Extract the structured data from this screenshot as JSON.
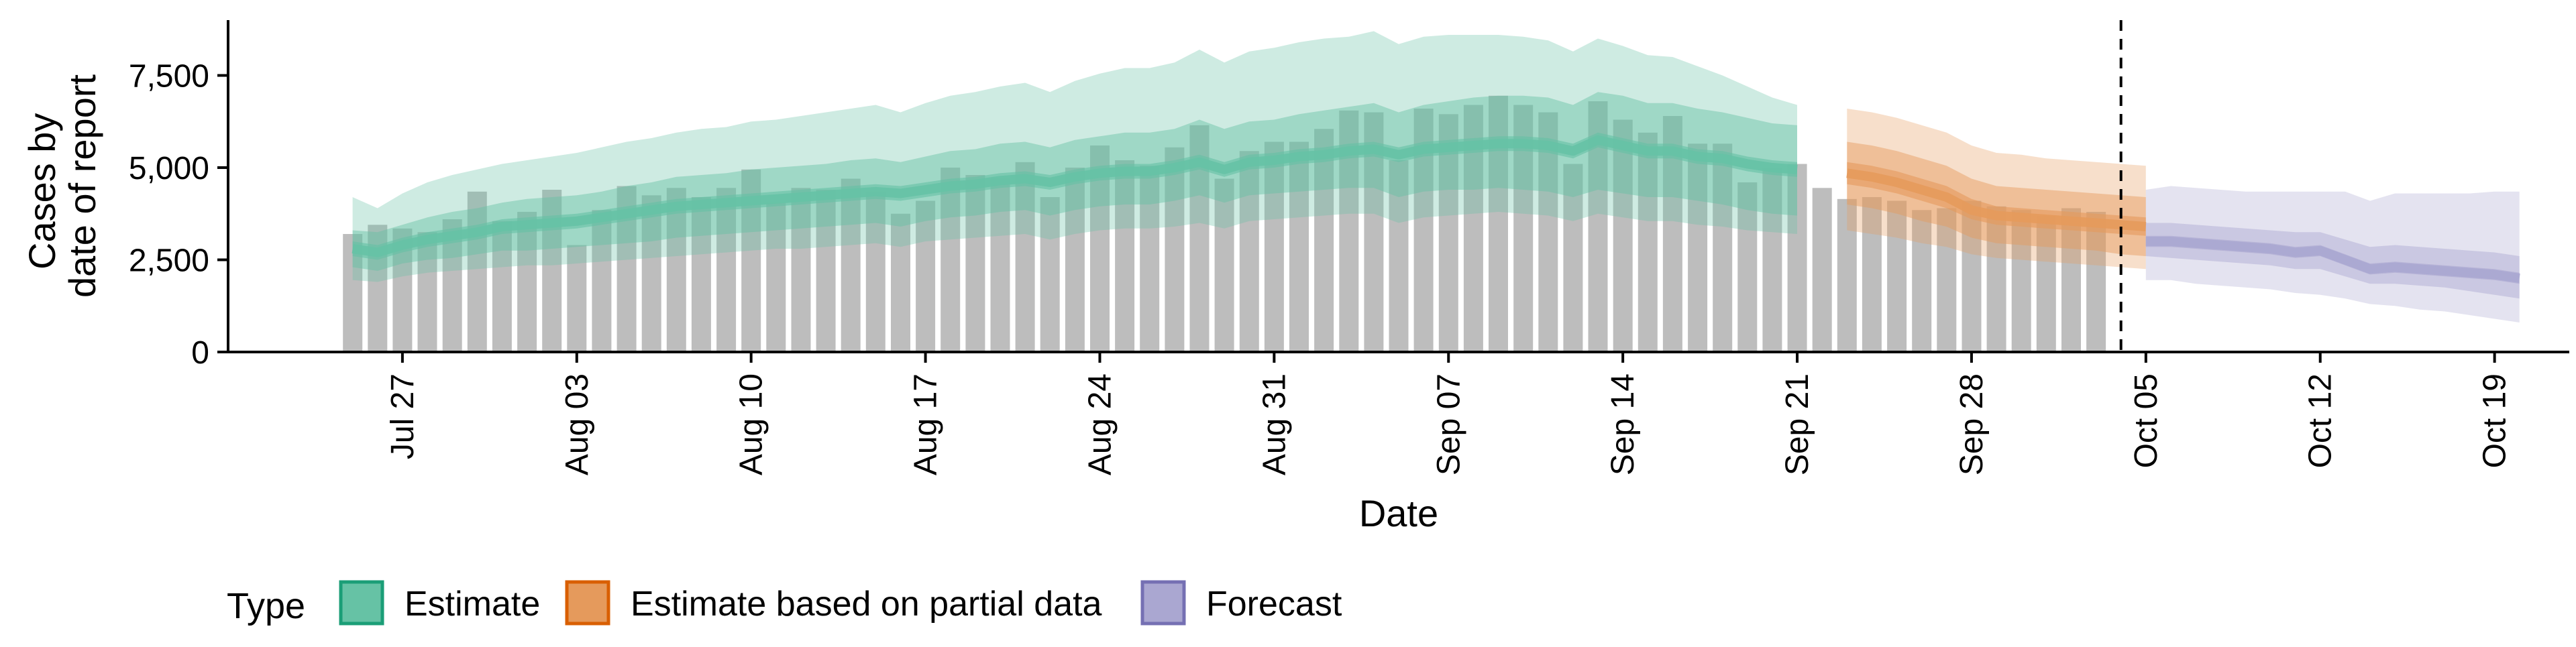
{
  "colors": {
    "Estimate": "#1b9e77",
    "Estimate based on partial data": "#d95f02",
    "Forecast": "#7570b3",
    "bars": "#bdbdbd",
    "Estimate_fill": "#66c2a5",
    "partial_fill": "#e59a5c",
    "Forecast_fill": "#aaa7d1"
  },
  "chart_data": {
    "type": "area",
    "xlabel": "Date",
    "ylabel_lines": [
      "Cases by",
      "date of report"
    ],
    "ylim": [
      0,
      9000
    ],
    "y_ticks": [
      0,
      2500,
      5000,
      7500
    ],
    "y_tick_labels": [
      "0",
      "2,500",
      "5,000",
      "7,500"
    ],
    "x_tick_dates": [
      "2020-07-27",
      "2020-08-03",
      "2020-08-10",
      "2020-08-17",
      "2020-08-24",
      "2020-08-31",
      "2020-09-07",
      "2020-09-14",
      "2020-09-21",
      "2020-09-28",
      "2020-10-05",
      "2020-10-12",
      "2020-10-19"
    ],
    "x_tick_labels": [
      "Jul 27",
      "Aug 03",
      "Aug 10",
      "Aug 17",
      "Aug 24",
      "Aug 31",
      "Sep 07",
      "Sep 14",
      "Sep 21",
      "Sep 28",
      "Oct 05",
      "Oct 12",
      "Oct 19"
    ],
    "xlim": [
      "2020-07-20",
      "2020-10-22"
    ],
    "reference_line_date": "2020-10-04",
    "bars": {
      "name": "Reported cases",
      "start_date": "2020-07-25",
      "values": [
        3200,
        3450,
        3350,
        3250,
        3600,
        4350,
        3550,
        3800,
        4400,
        2900,
        3850,
        4500,
        4250,
        4450,
        4200,
        4450,
        4950,
        4050,
        4450,
        4400,
        4700,
        4350,
        3750,
        4100,
        5000,
        4800,
        4700,
        5150,
        4200,
        5000,
        5600,
        5200,
        5050,
        5550,
        6150,
        4700,
        5450,
        5700,
        5700,
        6050,
        6550,
        6500,
        5200,
        6600,
        6450,
        6700,
        6950,
        6700,
        6500,
        5100,
        6800,
        6300,
        5950,
        6400,
        5650,
        5650,
        4600,
        5000,
        5100,
        4450,
        4150,
        4200,
        4100,
        3850,
        3900,
        4100,
        3950,
        3850,
        3700,
        3900,
        3800
      ]
    },
    "series": [
      {
        "name": "Estimate",
        "start_date": "2020-07-25",
        "median": [
          2800,
          2700,
          2900,
          3050,
          3150,
          3250,
          3400,
          3450,
          3500,
          3550,
          3650,
          3750,
          3850,
          3950,
          4000,
          4050,
          4100,
          4150,
          4200,
          4250,
          4300,
          4350,
          4300,
          4400,
          4500,
          4550,
          4650,
          4700,
          4600,
          4750,
          4850,
          4900,
          4900,
          5000,
          5150,
          4950,
          5150,
          5200,
          5300,
          5350,
          5450,
          5500,
          5350,
          5500,
          5550,
          5600,
          5650,
          5650,
          5600,
          5450,
          5750,
          5600,
          5450,
          5450,
          5300,
          5250,
          5100,
          5000,
          4950
        ],
        "p25": [
          2600,
          2500,
          2700,
          2850,
          2950,
          3050,
          3200,
          3250,
          3300,
          3350,
          3450,
          3550,
          3650,
          3750,
          3800,
          3850,
          3900,
          3950,
          4000,
          4050,
          4100,
          4150,
          4100,
          4200,
          4300,
          4350,
          4450,
          4500,
          4400,
          4550,
          4650,
          4700,
          4700,
          4800,
          4950,
          4750,
          4950,
          5000,
          5100,
          5150,
          5250,
          5300,
          5150,
          5300,
          5350,
          5400,
          5450,
          5450,
          5400,
          5250,
          5550,
          5400,
          5250,
          5250,
          5100,
          5050,
          4900,
          4800,
          4750
        ],
        "p75": [
          3000,
          2900,
          3100,
          3250,
          3350,
          3450,
          3600,
          3650,
          3700,
          3750,
          3850,
          3950,
          4050,
          4150,
          4200,
          4250,
          4300,
          4350,
          4400,
          4450,
          4500,
          4550,
          4500,
          4600,
          4700,
          4750,
          4850,
          4900,
          4800,
          4950,
          5050,
          5100,
          5100,
          5200,
          5350,
          5150,
          5350,
          5400,
          5500,
          5550,
          5650,
          5700,
          5550,
          5700,
          5750,
          5800,
          5850,
          5850,
          5800,
          5650,
          5950,
          5800,
          5650,
          5650,
          5500,
          5450,
          5300,
          5200,
          5150
        ],
        "p5": [
          2300,
          2200,
          2400,
          2500,
          2550,
          2650,
          2750,
          2750,
          2800,
          2850,
          2900,
          2950,
          3000,
          3100,
          3150,
          3200,
          3250,
          3300,
          3350,
          3400,
          3450,
          3500,
          3400,
          3550,
          3650,
          3700,
          3800,
          3850,
          3700,
          3850,
          3950,
          4000,
          4000,
          4100,
          4250,
          4050,
          4250,
          4300,
          4350,
          4400,
          4450,
          4450,
          4200,
          4350,
          4400,
          4400,
          4450,
          4400,
          4350,
          4200,
          4400,
          4300,
          4200,
          4200,
          4100,
          4000,
          3850,
          3750,
          3700
        ],
        "p95": [
          3300,
          3250,
          3450,
          3650,
          3800,
          3900,
          4050,
          4150,
          4200,
          4250,
          4350,
          4500,
          4600,
          4750,
          4800,
          4850,
          4950,
          5000,
          5050,
          5100,
          5200,
          5250,
          5150,
          5300,
          5450,
          5500,
          5650,
          5700,
          5550,
          5750,
          5850,
          5950,
          5950,
          6050,
          6300,
          6050,
          6250,
          6300,
          6450,
          6550,
          6650,
          6750,
          6500,
          6700,
          6800,
          6900,
          6950,
          6950,
          6900,
          6700,
          7050,
          6950,
          6750,
          6750,
          6600,
          6500,
          6350,
          6200,
          6150
        ],
        "p0_lo": [
          1950,
          1900,
          2050,
          2150,
          2200,
          2250,
          2300,
          2350,
          2350,
          2400,
          2450,
          2500,
          2550,
          2600,
          2650,
          2700,
          2750,
          2800,
          2800,
          2850,
          2900,
          2950,
          2850,
          3000,
          3050,
          3100,
          3150,
          3200,
          3050,
          3200,
          3300,
          3350,
          3350,
          3400,
          3500,
          3350,
          3550,
          3600,
          3650,
          3700,
          3750,
          3750,
          3500,
          3650,
          3700,
          3750,
          3800,
          3750,
          3700,
          3550,
          3750,
          3650,
          3550,
          3550,
          3450,
          3400,
          3300,
          3250,
          3200
        ],
        "p0_hi": [
          4200,
          3900,
          4300,
          4600,
          4800,
          4950,
          5100,
          5200,
          5300,
          5400,
          5550,
          5700,
          5800,
          5950,
          6050,
          6100,
          6250,
          6300,
          6400,
          6500,
          6600,
          6700,
          6500,
          6750,
          6950,
          7050,
          7200,
          7300,
          7050,
          7350,
          7550,
          7700,
          7700,
          7850,
          8200,
          7850,
          8150,
          8250,
          8400,
          8500,
          8550,
          8700,
          8350,
          8550,
          8600,
          8600,
          8600,
          8550,
          8450,
          8150,
          8500,
          8300,
          8050,
          8000,
          7750,
          7500,
          7200,
          6900,
          6700
        ]
      },
      {
        "name": "Estimate based on partial data",
        "start_date": "2020-09-23",
        "median": [
          4850,
          4750,
          4600,
          4400,
          4200,
          3850,
          3700,
          3650,
          3600,
          3550,
          3500,
          3450,
          3400
        ],
        "p25": [
          4550,
          4450,
          4300,
          4100,
          3900,
          3600,
          3450,
          3400,
          3350,
          3300,
          3250,
          3200,
          3150
        ],
        "p75": [
          5150,
          5050,
          4900,
          4700,
          4500,
          4150,
          3950,
          3900,
          3850,
          3800,
          3750,
          3700,
          3650
        ],
        "p5": [
          4000,
          3900,
          3750,
          3550,
          3400,
          3100,
          2950,
          2900,
          2850,
          2800,
          2750,
          2650,
          2600
        ],
        "p95": [
          5700,
          5600,
          5450,
          5250,
          5050,
          4700,
          4500,
          4450,
          4400,
          4350,
          4300,
          4250,
          4200
        ],
        "p0_lo": [
          3300,
          3200,
          3100,
          2950,
          2850,
          2650,
          2550,
          2500,
          2450,
          2400,
          2350,
          2300,
          2250
        ],
        "p0_hi": [
          6600,
          6500,
          6350,
          6150,
          5950,
          5600,
          5400,
          5350,
          5250,
          5200,
          5150,
          5100,
          5050
        ]
      },
      {
        "name": "Forecast",
        "start_date": "2020-10-05",
        "median": [
          3000,
          3000,
          2950,
          2900,
          2850,
          2800,
          2700,
          2750,
          2500,
          2250,
          2300,
          2250,
          2200,
          2150,
          2100,
          2000
        ],
        "p25": [
          2850,
          2850,
          2800,
          2750,
          2700,
          2650,
          2550,
          2600,
          2350,
          2100,
          2150,
          2100,
          2050,
          2000,
          1950,
          1850
        ],
        "p75": [
          3150,
          3150,
          3100,
          3050,
          3000,
          2950,
          2850,
          2900,
          2650,
          2400,
          2450,
          2400,
          2350,
          2300,
          2250,
          2150
        ],
        "p5": [
          2600,
          2550,
          2500,
          2450,
          2400,
          2350,
          2250,
          2250,
          2050,
          1850,
          1850,
          1800,
          1750,
          1650,
          1550,
          1450
        ],
        "p95": [
          3500,
          3500,
          3450,
          3400,
          3350,
          3300,
          3250,
          3250,
          3050,
          2850,
          2900,
          2850,
          2800,
          2750,
          2700,
          2600
        ],
        "p0_lo": [
          1950,
          1950,
          1850,
          1800,
          1750,
          1700,
          1600,
          1550,
          1450,
          1300,
          1250,
          1150,
          1100,
          1000,
          900,
          800
        ],
        "p0_hi": [
          4400,
          4500,
          4450,
          4400,
          4350,
          4350,
          4350,
          4350,
          4350,
          4100,
          4300,
          4300,
          4300,
          4300,
          4350,
          4350
        ]
      }
    ],
    "legend": {
      "title": "Type",
      "entries": [
        "Estimate",
        "Estimate based on partial data",
        "Forecast"
      ],
      "position": "bottom"
    }
  }
}
